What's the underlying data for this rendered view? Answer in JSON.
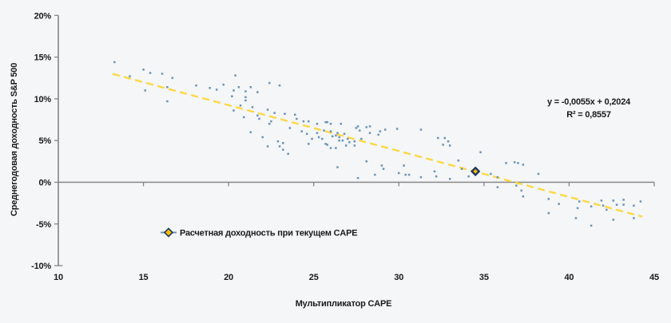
{
  "chart_data": {
    "type": "scatter",
    "title": "",
    "xlabel": "Мультипликатор CAPE",
    "ylabel": "Среднегодовая доходность S&P 500",
    "xlim": [
      10,
      45
    ],
    "ylim": [
      -10,
      20
    ],
    "grid": false,
    "x_ticks": [
      {
        "value": 10,
        "label": "10"
      },
      {
        "value": 15,
        "label": "15"
      },
      {
        "value": 20,
        "label": "20"
      },
      {
        "value": 25,
        "label": "25"
      },
      {
        "value": 30,
        "label": "30"
      },
      {
        "value": 35,
        "label": "35"
      },
      {
        "value": 40,
        "label": "40"
      },
      {
        "value": 45,
        "label": "45"
      }
    ],
    "y_ticks": [
      {
        "value": 20,
        "label": "20%"
      },
      {
        "value": 15,
        "label": "15%"
      },
      {
        "value": 10,
        "label": "10%"
      },
      {
        "value": 5,
        "label": "5%"
      },
      {
        "value": 0,
        "label": "0%"
      },
      {
        "value": -5,
        "label": "-5%"
      },
      {
        "value": -10,
        "label": "-10%"
      }
    ],
    "points": [
      [
        13.3,
        14.4
      ],
      [
        15.0,
        13.5
      ],
      [
        14.2,
        12.7
      ],
      [
        15.4,
        13.1
      ],
      [
        16.1,
        13.0
      ],
      [
        16.7,
        12.5
      ],
      [
        16.4,
        11.4
      ],
      [
        15.1,
        11.0
      ],
      [
        16.4,
        9.7
      ],
      [
        18.1,
        11.6
      ],
      [
        18.9,
        11.3
      ],
      [
        19.3,
        11.1
      ],
      [
        19.7,
        11.7
      ],
      [
        20.3,
        11.0
      ],
      [
        20.4,
        12.8
      ],
      [
        20.6,
        11.4
      ],
      [
        20.2,
        10.3
      ],
      [
        21.0,
        10.2
      ],
      [
        21.0,
        9.8
      ],
      [
        20.7,
        9.2
      ],
      [
        20.3,
        8.6
      ],
      [
        20.9,
        7.8
      ],
      [
        21.3,
        11.4
      ],
      [
        22.4,
        11.9
      ],
      [
        23.0,
        11.6
      ],
      [
        21.0,
        10.9
      ],
      [
        21.7,
        10.8
      ],
      [
        21.4,
        9.0
      ],
      [
        21.7,
        8.0
      ],
      [
        22.3,
        8.7
      ],
      [
        21.8,
        7.6
      ],
      [
        22.5,
        7.3
      ],
      [
        22.4,
        7.0
      ],
      [
        21.3,
        6.0
      ],
      [
        22.0,
        5.4
      ],
      [
        22.9,
        4.9
      ],
      [
        23.0,
        4.3
      ],
      [
        22.3,
        4.3
      ],
      [
        23.2,
        3.9
      ],
      [
        22.7,
        8.3
      ],
      [
        23.3,
        8.2
      ],
      [
        23.5,
        3.4
      ],
      [
        23.2,
        4.7
      ],
      [
        23.6,
        6.5
      ],
      [
        23.9,
        8.1
      ],
      [
        24.0,
        7.6
      ],
      [
        24.4,
        7.3
      ],
      [
        24.3,
        6.1
      ],
      [
        24.6,
        5.8
      ],
      [
        24.7,
        7.3
      ],
      [
        25.2,
        7.0
      ],
      [
        25.2,
        5.9
      ],
      [
        25.3,
        5.4
      ],
      [
        24.7,
        4.6
      ],
      [
        24.9,
        5.2
      ],
      [
        25.5,
        5.2
      ],
      [
        25.6,
        6.2
      ],
      [
        25.7,
        7.2
      ],
      [
        25.8,
        7.2
      ],
      [
        26.0,
        7.0
      ],
      [
        26.0,
        6.1
      ],
      [
        26.1,
        5.5
      ],
      [
        26.3,
        5.6
      ],
      [
        26.4,
        5.9
      ],
      [
        26.5,
        5.4
      ],
      [
        25.7,
        4.6
      ],
      [
        25.8,
        4.5
      ],
      [
        26.0,
        4.1
      ],
      [
        26.3,
        4.1
      ],
      [
        26.5,
        5.0
      ],
      [
        26.7,
        5.0
      ],
      [
        26.8,
        5.8
      ],
      [
        27.0,
        5.2
      ],
      [
        27.1,
        4.8
      ],
      [
        27.4,
        4.9
      ],
      [
        27.4,
        4.4
      ],
      [
        27.5,
        6.5
      ],
      [
        27.6,
        6.7
      ],
      [
        27.7,
        6.2
      ],
      [
        27.8,
        5.2
      ],
      [
        28.1,
        6.6
      ],
      [
        28.3,
        5.9
      ],
      [
        28.8,
        5.7
      ],
      [
        28.9,
        6.1
      ],
      [
        26.6,
        7.0
      ],
      [
        28.3,
        6.7
      ],
      [
        29.2,
        6.3
      ],
      [
        29.9,
        6.4
      ],
      [
        26.9,
        4.4
      ],
      [
        26.4,
        1.8
      ],
      [
        28.1,
        2.5
      ],
      [
        29.0,
        2.0
      ],
      [
        29.1,
        1.6
      ],
      [
        30.3,
        2.0
      ],
      [
        30.0,
        1.1
      ],
      [
        30.4,
        0.9
      ],
      [
        30.6,
        0.9
      ],
      [
        28.6,
        0.9
      ],
      [
        27.6,
        0.5
      ],
      [
        31.3,
        6.3
      ],
      [
        32.3,
        5.3
      ],
      [
        32.7,
        5.3
      ],
      [
        32.9,
        4.9
      ],
      [
        32.6,
        4.5
      ],
      [
        33.0,
        4.4
      ],
      [
        31.3,
        0.6
      ],
      [
        32.1,
        1.3
      ],
      [
        32.2,
        0.7
      ],
      [
        33.0,
        0.4
      ],
      [
        33.5,
        2.6
      ],
      [
        33.7,
        1.6
      ],
      [
        34.1,
        0.7
      ],
      [
        34.8,
        3.6
      ],
      [
        35.4,
        1.0
      ],
      [
        35.8,
        0.6
      ],
      [
        36.3,
        2.3
      ],
      [
        36.8,
        2.4
      ],
      [
        37.0,
        2.3
      ],
      [
        37.3,
        2.1
      ],
      [
        38.2,
        1.0
      ],
      [
        35.8,
        -0.6
      ],
      [
        36.9,
        -0.4
      ],
      [
        37.2,
        -1.0
      ],
      [
        37.3,
        -1.7
      ],
      [
        38.8,
        -2.0
      ],
      [
        39.4,
        -2.6
      ],
      [
        38.8,
        -3.7
      ],
      [
        40.5,
        -3.1
      ],
      [
        40.6,
        -2.3
      ],
      [
        41.3,
        -2.9
      ],
      [
        41.9,
        -2.2
      ],
      [
        42.0,
        -2.8
      ],
      [
        42.2,
        -3.3
      ],
      [
        42.6,
        -2.2
      ],
      [
        42.8,
        -2.7
      ],
      [
        43.2,
        -2.1
      ],
      [
        43.2,
        -2.7
      ],
      [
        43.8,
        -2.8
      ],
      [
        44.2,
        -2.3
      ],
      [
        43.8,
        -4.3
      ],
      [
        42.6,
        -4.5
      ],
      [
        40.4,
        -4.3
      ],
      [
        41.3,
        -5.2
      ]
    ],
    "trend": {
      "slope": -0.0055,
      "intercept": 0.2024,
      "x_start": 13.2,
      "x_end": 44.3,
      "equation_label": "y = -0,0055x + 0,2024",
      "r2_label": "R² = 0,8557"
    },
    "highlight_point": {
      "x": 34.5,
      "y": 1.3
    },
    "legend": {
      "label": "Расчетная доходность при текущем CAPE",
      "position": "bottom-left-inside"
    },
    "colors": {
      "background": "#f4f6f8",
      "scatter": "#6b93b7",
      "trend": "#fdd73e",
      "highlight_fill": "#ffc000",
      "highlight_stroke": "#1f3864",
      "axis": "#858585",
      "text": "#1a1a1a"
    }
  }
}
